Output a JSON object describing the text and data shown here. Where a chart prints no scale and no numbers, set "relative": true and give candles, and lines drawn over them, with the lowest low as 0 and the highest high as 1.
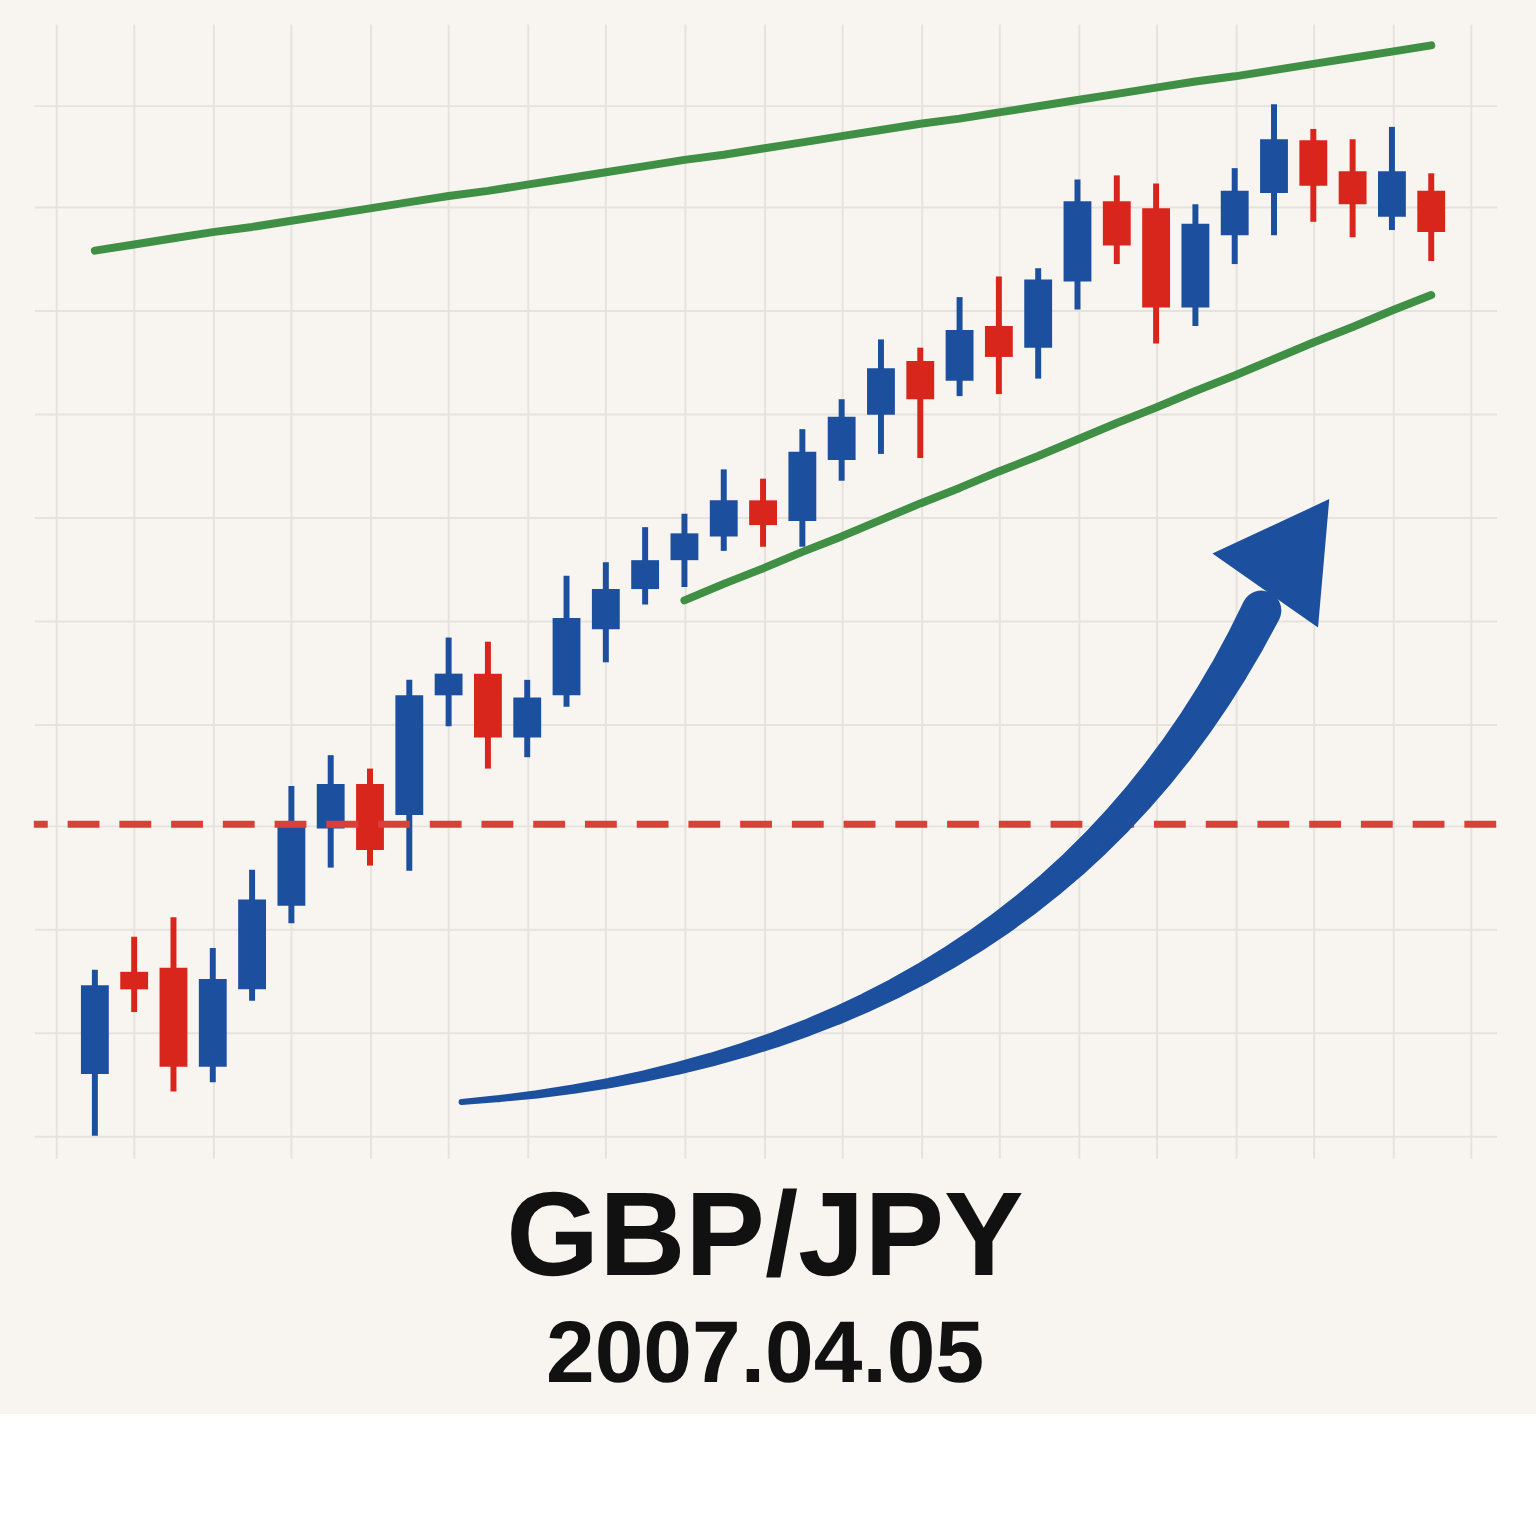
{
  "chart_data": {
    "type": "candlestick",
    "title": "GBP/JPY",
    "subtitle": "2007.04.05",
    "relative": true,
    "grid": true,
    "tick_labels": false,
    "categories": [
      null,
      null,
      null,
      null,
      null,
      null,
      null,
      null,
      null,
      null,
      null,
      null,
      null,
      null,
      null,
      null,
      null,
      null,
      null,
      null,
      null,
      null,
      null,
      null,
      null,
      null,
      null,
      null,
      null,
      null,
      null,
      null,
      null,
      null,
      null
    ],
    "ohlc": [
      [
        0.06,
        0.161,
        0.0,
        0.146
      ],
      [
        0.159,
        0.193,
        0.12,
        0.142
      ],
      [
        0.163,
        0.212,
        0.043,
        0.067
      ],
      [
        0.067,
        0.182,
        0.052,
        0.152
      ],
      [
        0.142,
        0.258,
        0.131,
        0.229
      ],
      [
        0.223,
        0.339,
        0.206,
        0.302
      ],
      [
        0.298,
        0.369,
        0.26,
        0.341
      ],
      [
        0.341,
        0.356,
        0.262,
        0.277
      ],
      [
        0.311,
        0.442,
        0.257,
        0.427
      ],
      [
        0.427,
        0.483,
        0.397,
        0.448
      ],
      [
        0.448,
        0.479,
        0.356,
        0.386
      ],
      [
        0.386,
        0.442,
        0.367,
        0.425
      ],
      [
        0.427,
        0.543,
        0.416,
        0.502
      ],
      [
        0.491,
        0.556,
        0.459,
        0.53
      ],
      [
        0.53,
        0.59,
        0.515,
        0.558
      ],
      [
        0.558,
        0.603,
        0.532,
        0.584
      ],
      [
        0.581,
        0.646,
        0.567,
        0.616
      ],
      [
        0.616,
        0.637,
        0.571,
        0.592
      ],
      [
        0.596,
        0.685,
        0.571,
        0.663
      ],
      [
        0.655,
        0.714,
        0.635,
        0.697
      ],
      [
        0.699,
        0.772,
        0.661,
        0.744
      ],
      [
        0.751,
        0.764,
        0.657,
        0.714
      ],
      [
        0.732,
        0.813,
        0.717,
        0.781
      ],
      [
        0.785,
        0.833,
        0.719,
        0.755
      ],
      [
        0.764,
        0.841,
        0.734,
        0.83
      ],
      [
        0.828,
        0.927,
        0.801,
        0.906
      ],
      [
        0.906,
        0.931,
        0.845,
        0.863
      ],
      [
        0.899,
        0.923,
        0.768,
        0.803
      ],
      [
        0.803,
        0.903,
        0.785,
        0.884
      ],
      [
        0.873,
        0.938,
        0.845,
        0.916
      ],
      [
        0.914,
        1.0,
        0.873,
        0.966
      ],
      [
        0.965,
        0.976,
        0.886,
        0.921
      ],
      [
        0.935,
        0.966,
        0.871,
        0.903
      ],
      [
        0.891,
        0.978,
        0.878,
        0.935
      ],
      [
        0.916,
        0.933,
        0.848,
        0.876
      ]
    ],
    "colors": [
      "#1c4f9e",
      "#d9261c",
      "#d9261c",
      "#1c4f9e",
      "#1c4f9e",
      "#1c4f9e",
      "#1c4f9e",
      "#d9261c",
      "#1c4f9e",
      "#1c4f9e",
      "#d9261c",
      "#1c4f9e",
      "#1c4f9e",
      "#1c4f9e",
      "#1c4f9e",
      "#1c4f9e",
      "#1c4f9e",
      "#d9261c",
      "#1c4f9e",
      "#1c4f9e",
      "#1c4f9e",
      "#d9261c",
      "#1c4f9e",
      "#d9261c",
      "#1c4f9e",
      "#1c4f9e",
      "#d9261c",
      "#d9261c",
      "#1c4f9e",
      "#1c4f9e",
      "#1c4f9e",
      "#d9261c",
      "#d9261c",
      "#1c4f9e",
      "#d9261c"
    ],
    "series": [
      {
        "type": "line",
        "color": "#3f8f45",
        "values": [
          0.858,
          0.864,
          0.87,
          0.876,
          0.881,
          0.887,
          0.893,
          0.899,
          0.905,
          0.911,
          0.916,
          0.922,
          0.928,
          0.934,
          0.94,
          0.946,
          0.951,
          0.957,
          0.963,
          0.969,
          0.975,
          0.981,
          0.986,
          0.992,
          0.998,
          1.004,
          1.01,
          1.016,
          1.022,
          1.027,
          1.033,
          1.039,
          1.045,
          1.051,
          1.057
        ]
      },
      {
        "type": "line",
        "color": "#3f8f45",
        "values": [
          null,
          null,
          null,
          null,
          null,
          null,
          null,
          null,
          null,
          null,
          null,
          null,
          null,
          null,
          null,
          0.519,
          0.535,
          0.55,
          0.566,
          0.581,
          0.597,
          0.613,
          0.628,
          0.644,
          0.659,
          0.675,
          0.691,
          0.706,
          0.722,
          0.737,
          0.753,
          0.769,
          0.784,
          0.8,
          0.815
        ]
      }
    ],
    "ref_lines": [
      {
        "axis": "y",
        "value": 0.302,
        "color": "#d9403a",
        "line_style": "dashed"
      }
    ]
  }
}
